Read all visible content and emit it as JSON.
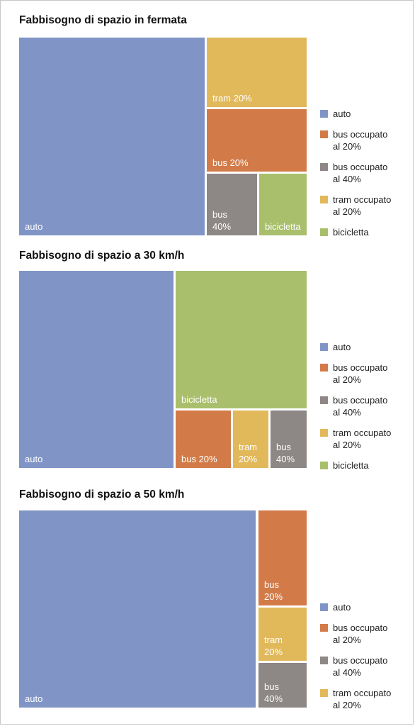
{
  "colors": {
    "auto": "#8095c6",
    "bus20": "#d27b49",
    "bus40": "#8d8885",
    "tram": "#e1b95b",
    "bici": "#a9bf6c"
  },
  "chart_data": [
    {
      "type": "treemap",
      "title": "Fabbisogno di spazio in fermata",
      "cells": [
        {
          "key": "auto",
          "label": "auto",
          "color": "auto"
        },
        {
          "key": "tram",
          "label": "tram 20%",
          "color": "tram"
        },
        {
          "key": "bus20",
          "label": "bus 20%",
          "color": "bus20"
        },
        {
          "key": "bus40",
          "label": "bus\n40%",
          "color": "bus40"
        },
        {
          "key": "bici",
          "label": "bicicletta",
          "color": "bici"
        }
      ],
      "legend": [
        {
          "label": "auto",
          "color": "auto"
        },
        {
          "label": "bus occupato\nal 20%",
          "color": "bus20"
        },
        {
          "label": "bus occupato\nal 40%",
          "color": "bus40"
        },
        {
          "label": "tram occupato\nal 20%",
          "color": "tram"
        },
        {
          "label": "bicicletta",
          "color": "bici"
        }
      ]
    },
    {
      "type": "treemap",
      "title": "Fabbisogno di spazio a 30 km/h",
      "cells": [
        {
          "key": "auto",
          "label": "auto",
          "color": "auto"
        },
        {
          "key": "bici",
          "label": "bicicletta",
          "color": "bici"
        },
        {
          "key": "bus20",
          "label": "bus 20%",
          "color": "bus20"
        },
        {
          "key": "tram",
          "label": "tram\n20%",
          "color": "tram"
        },
        {
          "key": "bus40",
          "label": "bus\n40%",
          "color": "bus40"
        }
      ],
      "legend": [
        {
          "label": "auto",
          "color": "auto"
        },
        {
          "label": "bus occupato\nal 20%",
          "color": "bus20"
        },
        {
          "label": "bus occupato\nal 40%",
          "color": "bus40"
        },
        {
          "label": "tram occupato\nal 20%",
          "color": "tram"
        },
        {
          "label": "bicicletta",
          "color": "bici"
        }
      ]
    },
    {
      "type": "treemap",
      "title": "Fabbisogno di spazio a 50 km/h",
      "cells": [
        {
          "key": "auto",
          "label": "auto",
          "color": "auto"
        },
        {
          "key": "bus20",
          "label": "bus\n20%",
          "color": "bus20"
        },
        {
          "key": "tram",
          "label": "tram\n20%",
          "color": "tram"
        },
        {
          "key": "bus40",
          "label": "bus\n40%",
          "color": "bus40"
        }
      ],
      "legend": [
        {
          "label": "auto",
          "color": "auto"
        },
        {
          "label": "bus occupato\nal 20%",
          "color": "bus20"
        },
        {
          "label": "bus occupato\nal 40%",
          "color": "bus40"
        },
        {
          "label": "tram occupato\nal 20%",
          "color": "tram"
        }
      ]
    }
  ]
}
